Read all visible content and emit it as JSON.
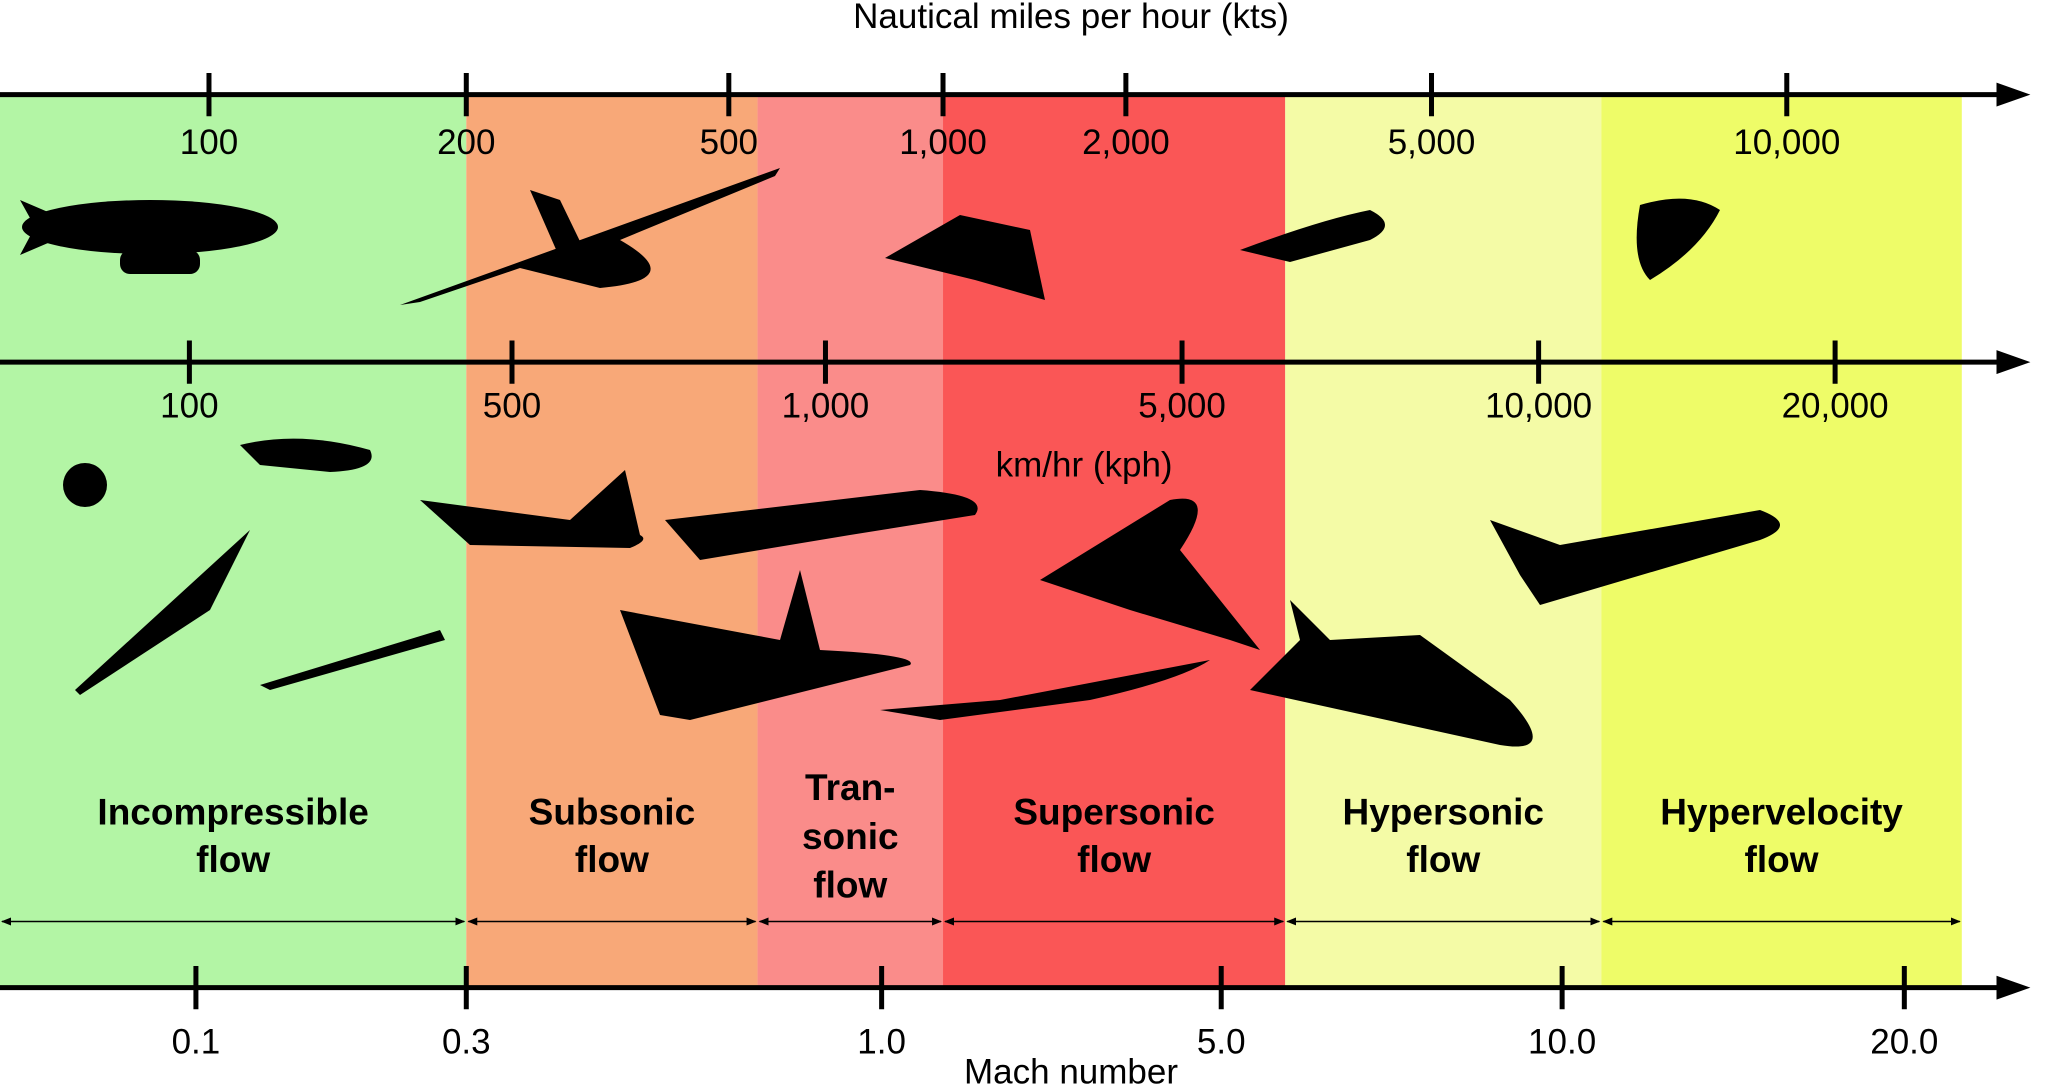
{
  "top_axis": {
    "title": "Nautical miles per hour (kts)",
    "ticks": [
      "100",
      "200",
      "500",
      "1,000",
      "2,000",
      "5,000",
      "10,000"
    ]
  },
  "middle_axis": {
    "title": "km/hr (kph)",
    "ticks": [
      "100",
      "500",
      "1,000",
      "5,000",
      "10,000",
      "20,000"
    ]
  },
  "bottom_axis": {
    "title": "Mach number",
    "ticks": [
      "0.1",
      "0.3",
      "1.0",
      "5.0",
      "10.0",
      "20.0"
    ]
  },
  "regions": [
    {
      "label_lines": [
        "Incompressible",
        "flow"
      ]
    },
    {
      "label_lines": [
        "Subsonic",
        "flow"
      ]
    },
    {
      "label_lines": [
        "Tran-",
        "sonic",
        "flow"
      ]
    },
    {
      "label_lines": [
        "Supersonic",
        "flow"
      ]
    },
    {
      "label_lines": [
        "Hypersonic",
        "flow"
      ]
    },
    {
      "label_lines": [
        "Hypervelocity",
        "flow"
      ]
    }
  ]
}
